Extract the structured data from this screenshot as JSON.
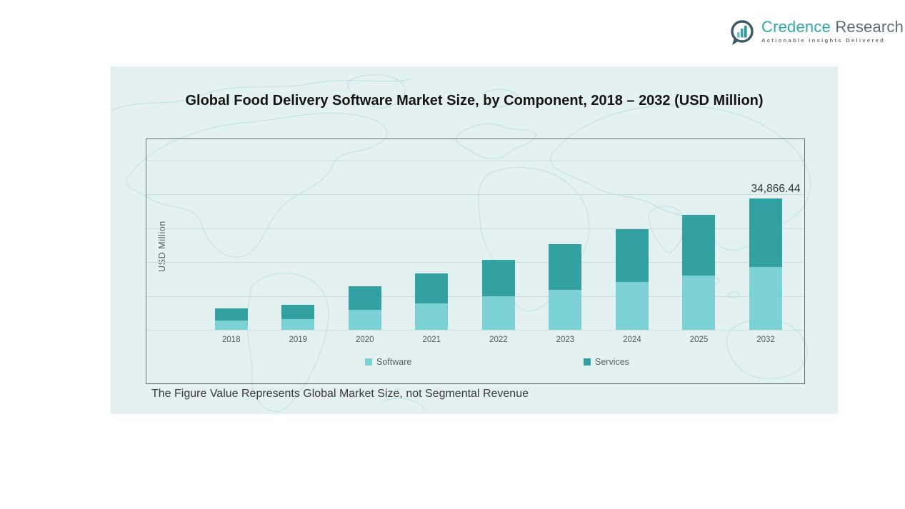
{
  "logo": {
    "brand_primary": "Credence",
    "brand_secondary": "Research",
    "tagline": "Actionable Insights Delivered",
    "colors": {
      "primary": "#2fa9ab",
      "secondary": "#5d6d7b",
      "ring": "#3d5a66"
    }
  },
  "panel": {
    "background": "#e3f1f1"
  },
  "chart_data": {
    "type": "bar",
    "stacked": true,
    "title": "Global Food Delivery Software Market Size, by Component, 2018 – 2032 (USD Million)",
    "categories": [
      "2018",
      "2019",
      "2020",
      "2021",
      "2022",
      "2023",
      "2024",
      "2025",
      "2032"
    ],
    "series": [
      {
        "name": "Software",
        "color": "#7bd1d3",
        "values": [
          2430,
          2940,
          5370,
          7100,
          8980,
          10710,
          12660,
          14470,
          16732.44
        ]
      },
      {
        "name": "Services",
        "color": "#33a0a1",
        "values": [
          3240,
          3680,
          6170,
          7910,
          9590,
          12100,
          14020,
          16130,
          18134
        ]
      }
    ],
    "totals": [
      5670,
      6620,
      11540,
      15010,
      18570,
      22810,
      26680,
      30600,
      34866.44
    ],
    "data_labels": [
      {
        "category": "2032",
        "text": "34,866.44"
      }
    ],
    "xlabel": "",
    "ylabel": "USD Million",
    "ylim": [
      0,
      45000
    ],
    "gridline_step": 9000,
    "grid": true,
    "legend_position": "bottom",
    "note": "The Figure Value Represents Global Market Size, not Segmental Revenue",
    "values_note": "series values estimated from bar heights; only 2032 total is labeled on chart"
  }
}
